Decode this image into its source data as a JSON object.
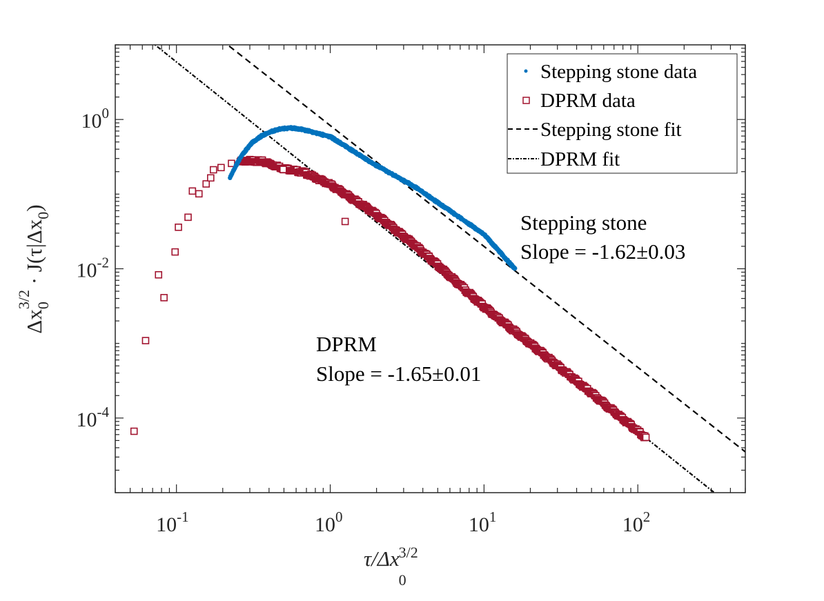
{
  "chart_data": {
    "type": "scatter",
    "xscale": "log",
    "yscale": "log",
    "xlim": [
      0.04,
      500
    ],
    "ylim": [
      1e-05,
      10
    ],
    "grid": false,
    "xlabel": "τ/Δx₀^{3/2}",
    "xlabel_parts": {
      "main": "τ/Δx",
      "sub": "0",
      "sup": "3/2"
    },
    "ylabel": "Δx₀^{3/2} · J(τ|Δx₀)",
    "ylabel_parts": {
      "p1": "Δx",
      "sub1": "0",
      "sup1": "3/2",
      "p2": " · J(τ|Δx",
      "sub2": "0",
      "p3": ")"
    },
    "xticks": [
      {
        "value": 0.1,
        "base": "10",
        "exp": "-1"
      },
      {
        "value": 1,
        "base": "10",
        "exp": "0"
      },
      {
        "value": 10,
        "base": "10",
        "exp": "1"
      },
      {
        "value": 100,
        "base": "10",
        "exp": "2"
      }
    ],
    "yticks": [
      {
        "value": 1,
        "base": "10",
        "exp": "0"
      },
      {
        "value": 0.01,
        "base": "10",
        "exp": "-2"
      },
      {
        "value": 0.0001,
        "base": "10",
        "exp": "-4"
      }
    ],
    "legend": {
      "position": "top-right",
      "entries": [
        {
          "label": "Stepping stone data",
          "marker": "dot",
          "color": "#0072BD"
        },
        {
          "label": "DPRM data",
          "marker": "square",
          "color": "#A2142F"
        },
        {
          "label": "Stepping stone fit",
          "marker": "dashed-line",
          "color": "#000000"
        },
        {
          "label": "DPRM fit",
          "marker": "dashdot-line",
          "color": "#000000"
        }
      ]
    },
    "series": [
      {
        "name": "Stepping stone data",
        "marker": "dot",
        "color": "#0072BD",
        "dense": true,
        "points": [
          [
            0.223,
            0.165
          ],
          [
            0.24,
            0.227
          ],
          [
            0.266,
            0.333
          ],
          [
            0.31,
            0.487
          ],
          [
            0.362,
            0.614
          ],
          [
            0.445,
            0.728
          ],
          [
            0.547,
            0.776
          ],
          [
            0.672,
            0.728
          ],
          [
            1.0,
            0.589
          ],
          [
            1.89,
            0.258
          ],
          [
            3.49,
            0.128
          ],
          [
            5.27,
            0.072
          ],
          [
            10,
            0.029
          ],
          [
            15.9,
            0.0099
          ]
        ]
      },
      {
        "name": "DPRM data",
        "marker": "square",
        "color": "#A2142F",
        "dense_from_index": 15,
        "points": [
          [
            0.053,
            6.65e-05
          ],
          [
            0.063,
            0.00109
          ],
          [
            0.0765,
            0.0083
          ],
          [
            0.083,
            0.0041
          ],
          [
            0.098,
            0.0168
          ],
          [
            0.103,
            0.036
          ],
          [
            0.119,
            0.049
          ],
          [
            0.127,
            0.11
          ],
          [
            0.14,
            0.101
          ],
          [
            0.156,
            0.137
          ],
          [
            0.167,
            0.165
          ],
          [
            0.174,
            0.212
          ],
          [
            0.195,
            0.227
          ],
          [
            0.228,
            0.258
          ],
          [
            0.26,
            0.272
          ],
          [
            0.295,
            0.281
          ],
          [
            0.362,
            0.275
          ],
          [
            0.494,
            0.222
          ],
          [
            0.672,
            0.196
          ],
          [
            1.0,
            0.135
          ],
          [
            1.89,
            0.058
          ],
          [
            3.49,
            0.0215
          ],
          [
            6.4,
            0.0071
          ],
          [
            10,
            0.0031
          ],
          [
            27.4,
            0.00059
          ],
          [
            45.8,
            0.00025
          ],
          [
            76.6,
            0.000105
          ],
          [
            113,
            5.4e-05
          ]
        ],
        "outliers": [
          [
            0.494,
            0.214
          ],
          [
            1.25,
            0.043
          ]
        ]
      },
      {
        "name": "Stepping stone fit",
        "type": "line",
        "style": "dashed",
        "color": "#000000",
        "model": "y = A·x^slope",
        "slope": -1.62,
        "A": 0.83
      },
      {
        "name": "DPRM fit",
        "type": "line",
        "style": "dashdot",
        "color": "#000000",
        "model": "y = A·x^slope",
        "slope": -1.65,
        "A": 0.132
      }
    ],
    "annotations": [
      {
        "id": "ss",
        "lines": [
          "Stepping stone",
          "Slope = -1.62±0.03"
        ],
        "x": 16,
        "y": 0.1
      },
      {
        "id": "dprm",
        "lines": [
          "DPRM",
          "Slope = -1.65±0.01"
        ],
        "x": 0.8,
        "y": 0.001
      }
    ]
  }
}
